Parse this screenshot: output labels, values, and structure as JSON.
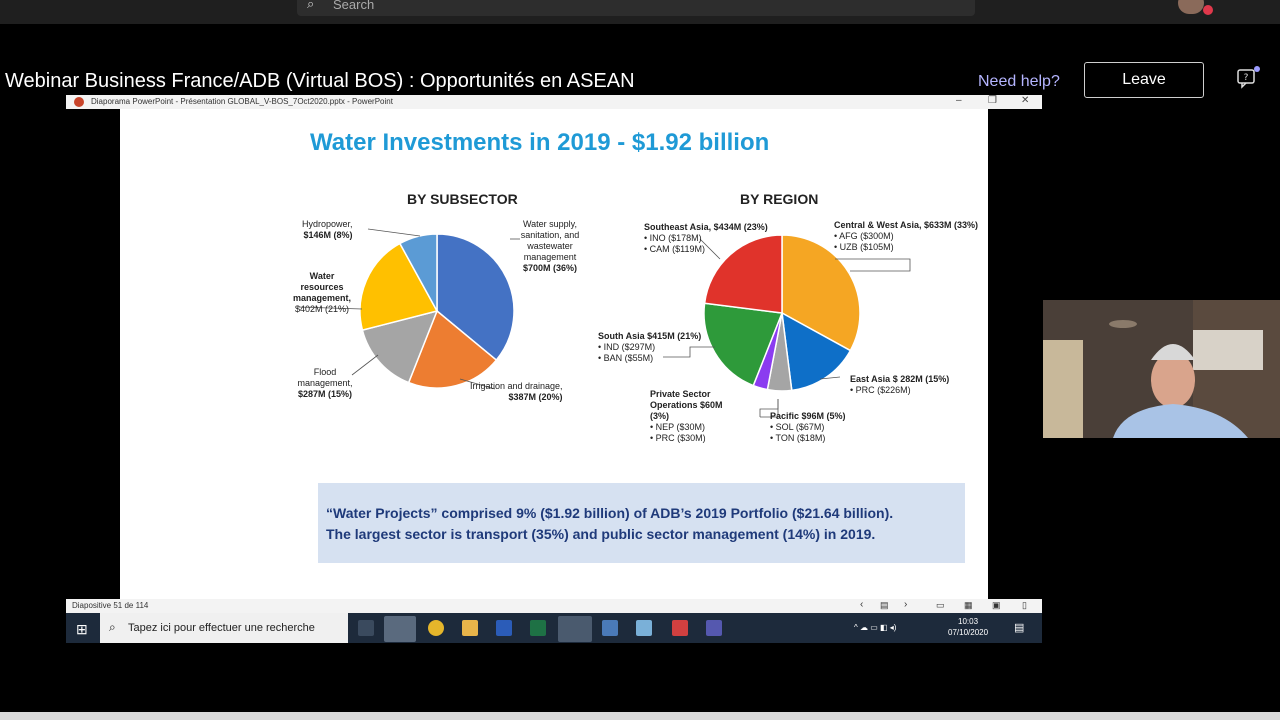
{
  "topbar": {
    "search_placeholder": "Search"
  },
  "meeting": {
    "title": "Webinar Business France/ADB (Virtual BOS) : Opportunités en ASEAN",
    "help": "Need help?",
    "leave": "Leave"
  },
  "ppt": {
    "titlebar": "Diaporama PowerPoint  -  Présentation GLOBAL_V-BOS_7Oct2020.pptx  -  PowerPoint",
    "status": "Diapositive 51 de 114"
  },
  "slide": {
    "title": "Water Investments in 2019 - $1.92 billion",
    "left_header": "BY SUBSECTOR",
    "right_header": "BY REGION",
    "note_line1": "“Water Projects” comprised 9% ($1.92 billion) of ADB’s 2019 Portfolio ($21.64 billion).",
    "note_line2": "The largest sector is transport (35%) and public sector management (14%) in 2019."
  },
  "chart_data": [
    {
      "type": "pie",
      "title": "BY SUBSECTOR",
      "slices": [
        {
          "label": "Water supply, sanitation, and wastewater management",
          "value_text": "$700M (36%)",
          "value": 36,
          "color": "#4472c4"
        },
        {
          "label": "Irrigation and drainage,",
          "value_text": "$387M (20%)",
          "value": 20,
          "color": "#ed7d31"
        },
        {
          "label": "Flood management,",
          "value_text": "$287M (15%)",
          "value": 15,
          "color": "#a5a5a5"
        },
        {
          "label": "Water resources management,",
          "value_text": "$402M (21%)",
          "value": 21,
          "color": "#ffc000"
        },
        {
          "label": "Hydropower,",
          "value_text": "$146M (8%)",
          "value": 8,
          "color": "#5b9bd5"
        }
      ]
    },
    {
      "type": "pie",
      "title": "BY REGION",
      "slices": [
        {
          "label": "Central & West Asia, $633M (33%)",
          "value": 33,
          "color": "#f5a623",
          "details": [
            "• AFG ($300M)",
            "• UZB ($105M)"
          ]
        },
        {
          "label": "East Asia $ 282M (15%)",
          "value": 15,
          "color": "#0e6fc8",
          "details": [
            "• PRC ($226M)"
          ]
        },
        {
          "label": "Pacific $96M (5%)",
          "value": 5,
          "color": "#a5a5a5",
          "details": [
            "• SOL ($67M)",
            "• TON ($18M)"
          ]
        },
        {
          "label": "Private Sector Operations $60M (3%)",
          "value": 3,
          "color": "#8b3cf0",
          "details": [
            "• NEP ($30M)",
            "• PRC ($30M)"
          ]
        },
        {
          "label": "South Asia $415M (21%)",
          "value": 21,
          "color": "#2e9a3a",
          "details": [
            "• IND ($297M)",
            "• BAN ($55M)"
          ]
        },
        {
          "label": "Southeast Asia, $434M (23%)",
          "value": 23,
          "color": "#e0332b",
          "details": [
            "• INO ($178M)",
            "• CAM ($119M)"
          ]
        }
      ]
    }
  ],
  "taskbar": {
    "search": "Tapez ici pour effectuer une recherche",
    "time": "10:03",
    "date": "07/10/2020"
  }
}
